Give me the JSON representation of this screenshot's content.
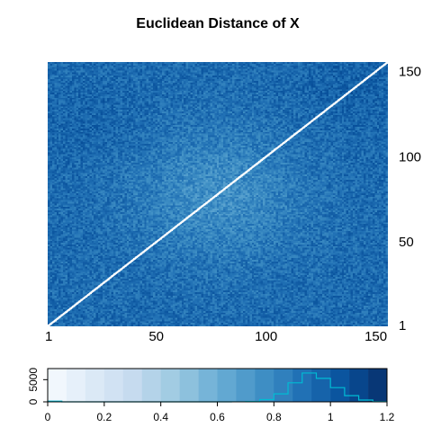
{
  "chart_data": [
    {
      "type": "heatmap",
      "title": "Euclidean Distance of X",
      "rows": 155,
      "cols": 155,
      "x_ticks": [
        1,
        50,
        100,
        150
      ],
      "y_ticks": [
        1,
        50,
        100,
        150
      ],
      "x_range": [
        1,
        155
      ],
      "y_range": [
        1,
        155
      ],
      "diagonal_value": 0,
      "value_range": [
        0,
        1.2
      ],
      "colormap": [
        "#f7fbff",
        "#deebf7",
        "#c6dbef",
        "#9ecae1",
        "#6baed6",
        "#4292c6",
        "#2171b5",
        "#08519c",
        "#08306b"
      ],
      "grid": false
    },
    {
      "type": "histogram",
      "role": "color-key",
      "x_ticks": [
        "0",
        "0.2",
        "0.4",
        "0.6",
        "0.8",
        "1",
        "1.2"
      ],
      "y_ticks": [
        "0",
        "5000"
      ],
      "xlim": [
        0,
        1.2
      ],
      "ylim": [
        0,
        7500
      ],
      "bin_edges": [
        0,
        0.05,
        0.1,
        0.15,
        0.2,
        0.25,
        0.3,
        0.35,
        0.4,
        0.45,
        0.5,
        0.55,
        0.6,
        0.65,
        0.7,
        0.75,
        0.8,
        0.85,
        0.9,
        0.95,
        1.0,
        1.05,
        1.1,
        1.15,
        1.2
      ],
      "counts": [
        150,
        0,
        0,
        0,
        0,
        0,
        0,
        0,
        0,
        0,
        0,
        0,
        0,
        10,
        80,
        500,
        1800,
        4300,
        6500,
        5300,
        3200,
        1400,
        400,
        50
      ],
      "line_color": "#00bcd4",
      "bands": 18
    }
  ]
}
